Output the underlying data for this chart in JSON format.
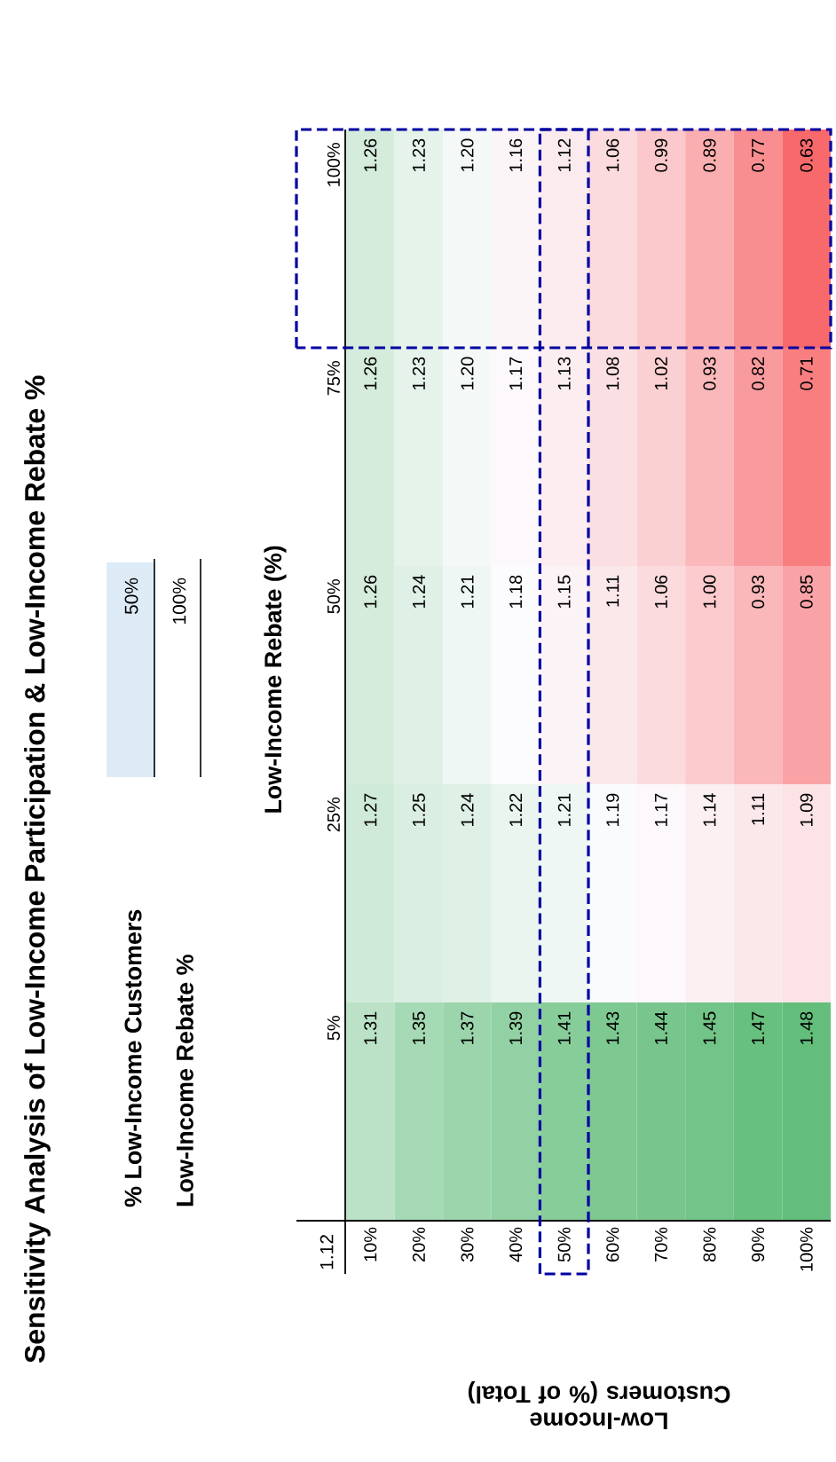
{
  "chart_data": {
    "type": "heatmap",
    "title": "Sensitivity Analysis of Low-Income Participation & Low-Income Rebate %",
    "xlabel": "Low-Income Customers (% of Total)",
    "ylabel": "Low-Income Rebate (%)",
    "categories": [
      "10%",
      "20%",
      "30%",
      "40%",
      "50%",
      "60%",
      "70%",
      "80%",
      "90%",
      "100%"
    ],
    "y_categories": [
      "100%",
      "75%",
      "50%",
      "25%",
      "5%"
    ],
    "cells": [
      [
        1.26,
        1.23,
        1.2,
        1.16,
        1.12,
        1.06,
        0.99,
        0.89,
        0.77,
        0.63
      ],
      [
        1.26,
        1.23,
        1.2,
        1.17,
        1.13,
        1.08,
        1.02,
        0.93,
        0.82,
        0.71
      ],
      [
        1.26,
        1.24,
        1.21,
        1.18,
        1.15,
        1.11,
        1.06,
        1.0,
        0.93,
        0.85
      ],
      [
        1.27,
        1.25,
        1.24,
        1.22,
        1.21,
        1.19,
        1.17,
        1.14,
        1.11,
        1.09
      ],
      [
        1.31,
        1.35,
        1.37,
        1.39,
        1.41,
        1.43,
        1.44,
        1.45,
        1.47,
        1.48
      ]
    ],
    "cell_labels": [
      [
        "1.26",
        "1.23",
        "1.20",
        "1.16",
        "1.12",
        "1.06",
        "0.99",
        "0.89",
        "0.77",
        "0.63"
      ],
      [
        "1.26",
        "1.23",
        "1.20",
        "1.17",
        "1.13",
        "1.08",
        "1.02",
        "0.93",
        "0.82",
        "0.71"
      ],
      [
        "1.26",
        "1.24",
        "1.21",
        "1.18",
        "1.15",
        "1.11",
        "1.06",
        "1.00",
        "0.93",
        "0.85"
      ],
      [
        "1.27",
        "1.25",
        "1.24",
        "1.22",
        "1.21",
        "1.19",
        "1.17",
        "1.14",
        "1.11",
        "1.09"
      ],
      [
        "1.31",
        "1.35",
        "1.37",
        "1.39",
        "1.41",
        "1.43",
        "1.44",
        "1.45",
        "1.47",
        "1.48"
      ]
    ],
    "annotations": [
      "1.12",
      "% Low-Income Customers",
      "50%",
      "Low-Income Rebate %",
      "100%"
    ]
  }
}
